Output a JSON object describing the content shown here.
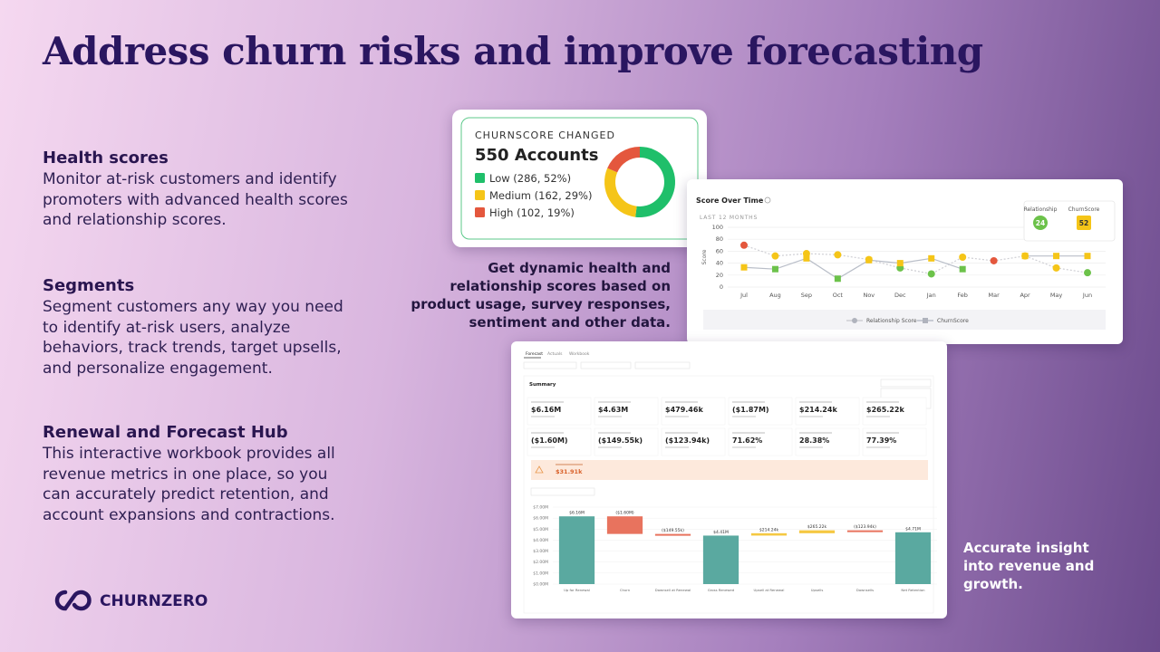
{
  "title": "Address churn risks and improve forecasting",
  "sections": [
    {
      "heading": "Health scores",
      "body": "Monitor at-risk customers and identify promoters with advanced health scores and relationship scores."
    },
    {
      "heading": "Segments",
      "body": "Segment customers any way you need to identify at-risk users, analyze behaviors, track trends, target upsells, and personalize engagement."
    },
    {
      "heading": "Renewal and Forecast Hub",
      "body": "This interactive workbook provides all revenue metrics in one place, so you can accurately predict retention, and account expansions and contractions."
    }
  ],
  "captions": [
    "Get dynamic health and relationship scores based on product usage, survey responses, sentiment and other data.",
    "Accurate insight into revenue and growth."
  ],
  "logo": "CHURNZERO",
  "workbook": {
    "tabs": [
      "Forecast",
      "Actuals",
      "Workbook"
    ],
    "summary_title": "Summary",
    "metrics": [
      "$6.16M",
      "$4.63M",
      "$479.46k",
      "($1.87M)",
      "$214.24k",
      "$265.22k",
      "($1.60M)",
      "($149.55k)",
      "($123.94k)",
      "71.62%",
      "28.38%",
      "77.39%"
    ],
    "alert_value": "$31.91k"
  },
  "chart_data": [
    {
      "type": "pie",
      "title": "CHURNSCORE CHANGED",
      "subtitle": "550 Accounts",
      "categories": [
        "Low (286, 52%)",
        "Medium (162, 29%)",
        "High (102, 19%)"
      ],
      "values": [
        286,
        162,
        102
      ],
      "colors": [
        "#1fbf6a",
        "#f5c518",
        "#e4573d"
      ]
    },
    {
      "type": "line",
      "title": "Score Over Time",
      "subtitle": "LAST 12 MONTHS",
      "y_label": "Score",
      "categories": [
        "Jul",
        "Aug",
        "Sep",
        "Oct",
        "Nov",
        "Dec",
        "Jan",
        "Feb",
        "Mar",
        "Apr",
        "May",
        "Jun"
      ],
      "ylim": [
        0,
        100
      ],
      "yticks": [
        0,
        20,
        40,
        60,
        80,
        100
      ],
      "series": [
        {
          "name": "Relationship Score",
          "color": "#cfcfd4",
          "marker": "circle",
          "values": [
            70,
            52,
            56,
            54,
            46,
            32,
            22,
            50,
            44,
            52,
            32,
            24
          ],
          "point_colors": [
            "#e4573d",
            "#f5c518",
            "#f5c518",
            "#f5c518",
            "#f5c518",
            "#6cc24a",
            "#6cc24a",
            "#f5c518",
            "#e4573d",
            "#f5c518",
            "#f5c518",
            "#6cc24a"
          ]
        },
        {
          "name": "ChurnScore",
          "color": "#b9bec8",
          "marker": "square",
          "values": [
            33,
            30,
            48,
            14,
            45,
            40,
            48,
            30,
            null,
            52,
            52,
            52
          ],
          "point_colors": [
            "#f5c518",
            "#6cc24a",
            "#f5c518",
            "#6cc24a",
            "#f5c518",
            "#f5c518",
            "#f5c518",
            "#6cc24a",
            null,
            "#f5c518",
            "#f5c518",
            "#f5c518"
          ]
        }
      ],
      "tooltip": [
        {
          "name": "Relationship",
          "value": 24,
          "color": "#6cc24a"
        },
        {
          "name": "ChurnScore",
          "value": 52,
          "color": "#f5c518"
        }
      ]
    },
    {
      "type": "waterfall",
      "categories": [
        "Up for Renewal",
        "Churn",
        "Downsell at Renewal",
        "Gross Renewed",
        "Upsell at Renewal",
        "Upsells",
        "Downsells",
        "Net Retention"
      ],
      "values": [
        6.16,
        -1.6,
        -0.14955,
        4.41,
        0.21424,
        0.26522,
        -0.12394,
        4.71
      ],
      "value_labels": [
        "$6.16M",
        "($1.60M)",
        "($149.55k)",
        "$4.41M",
        "$214.24k",
        "$265.22k",
        "($123.94k)",
        "$4.71M"
      ],
      "bar_kinds": [
        "total",
        "delta",
        "delta",
        "total",
        "delta",
        "delta",
        "delta",
        "total"
      ],
      "colors": {
        "total": "#5aa9a0",
        "increase": "#f5c842",
        "decrease": "#e8735e"
      },
      "ylim": [
        0,
        7
      ],
      "yticks": [
        {
          "value": 0,
          "label": "$0.00M"
        },
        {
          "value": 1,
          "label": "$1.00M"
        },
        {
          "value": 2,
          "label": "$2.00M"
        },
        {
          "value": 3,
          "label": "$3.00M"
        },
        {
          "value": 4,
          "label": "$4.00M"
        },
        {
          "value": 5,
          "label": "$5.00M"
        },
        {
          "value": 6,
          "label": "$6.00M"
        },
        {
          "value": 7,
          "label": "$7.00M"
        }
      ]
    }
  ]
}
